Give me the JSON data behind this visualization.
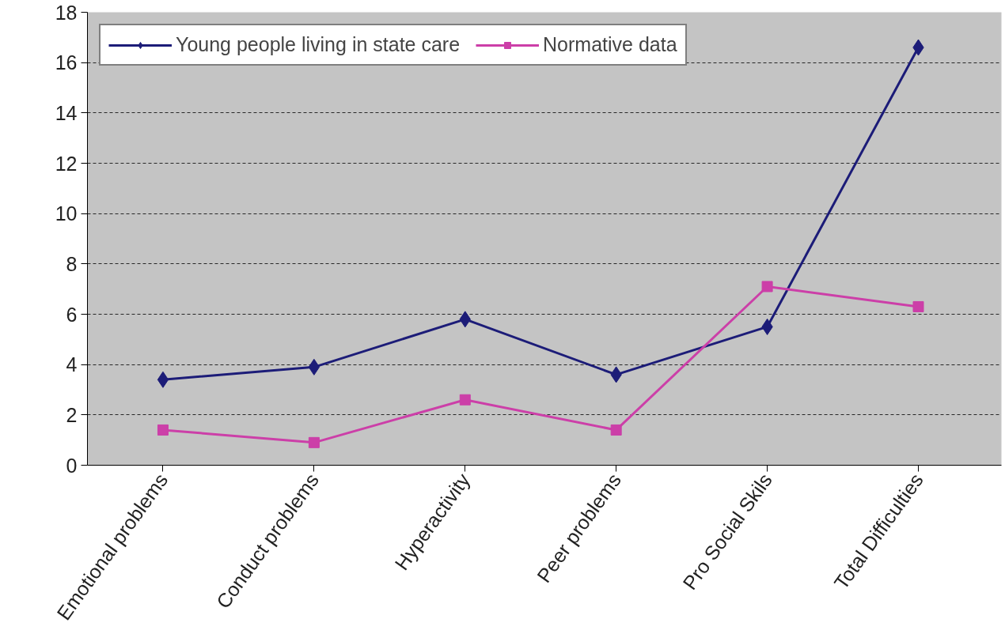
{
  "chart_data": {
    "type": "line",
    "categories": [
      "Emotional problems",
      "Conduct problems",
      "Hyperactivity",
      "Peer problems",
      "Pro Social Skils",
      "Total Difficulties"
    ],
    "series": [
      {
        "name": "Young people living in state care",
        "color": "#1c1c78",
        "marker": "diamond",
        "values": [
          3.4,
          3.9,
          5.8,
          3.6,
          5.5,
          16.6
        ]
      },
      {
        "name": "Normative data",
        "color": "#cc3fa8",
        "marker": "square",
        "values": [
          1.4,
          0.9,
          2.6,
          1.4,
          7.1,
          6.3
        ]
      }
    ],
    "ylim": [
      0,
      18
    ],
    "yticks": [
      0,
      2,
      4,
      6,
      8,
      10,
      12,
      14,
      16,
      18
    ],
    "grid": "y",
    "legend": "top left",
    "line_style": "solid"
  }
}
